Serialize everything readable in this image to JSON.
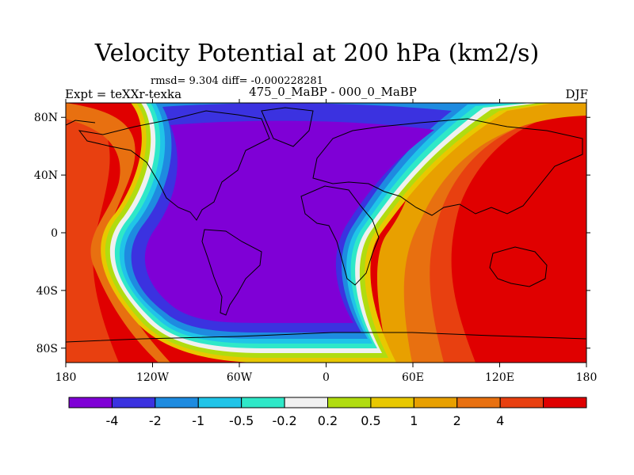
{
  "title": "Velocity Potential at 200 hPa (km2/s)",
  "stats": "rmsd= 9.304 diff= -0.000228281",
  "experiment": "Expt = teXXr-texka",
  "center_label": "475_0_MaBP - 000_0_MaBP",
  "season": "DJF",
  "chart_data": {
    "type": "heatmap",
    "title": "Velocity Potential at 200 hPa (km2/s)",
    "x_ticks": [
      "180",
      "120W",
      "60W",
      "0",
      "60E",
      "120E",
      "180"
    ],
    "y_ticks": [
      "80N",
      "40N",
      "0",
      "40S",
      "80S"
    ],
    "xlim": [
      -180,
      180
    ],
    "ylim": [
      -90,
      90
    ],
    "colorbar": {
      "colors": [
        "#7f00d6",
        "#3b32e0",
        "#1e8be0",
        "#20c4e8",
        "#2fe8c8",
        "#f0f0f0",
        "#b0dc10",
        "#e8c800",
        "#e8a000",
        "#e87010",
        "#e84010",
        "#e00000"
      ],
      "labels": [
        "-4",
        "-2",
        "-1",
        "-0.5",
        "-0.2",
        "0.2",
        "0.5",
        "1",
        "2",
        "4"
      ]
    },
    "field_description_regions": {
      "negative_core": "Americas–Atlantic–Africa (about 150W to 30E), < -4",
      "positive_core": "Indian Ocean–Pacific (about 60E to 150W), > 4"
    }
  }
}
